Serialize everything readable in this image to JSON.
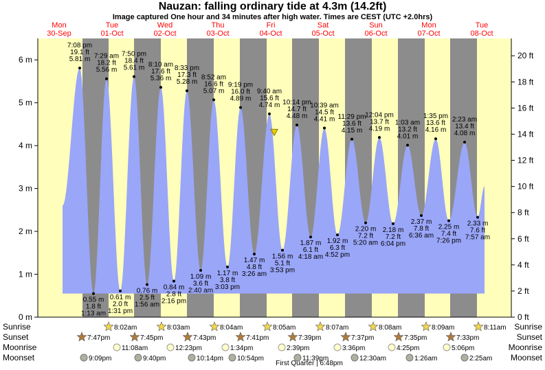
{
  "title": "Nauzan: falling  ordinary tide at 4.3m (14.2ft)",
  "subtitle": "Image captured One hour and 34 minutes after high water. Times are CEST (UTC +2.0hrs)",
  "moon_phase_note": "First Quarter | 6:48pm",
  "row_labels": [
    "Sunrise",
    "Sunset",
    "Moonrise",
    "Moonset"
  ],
  "colors": {
    "water": "#9aa6f8",
    "day": "#ffffbb",
    "night": "#8c8c8c",
    "dayname": "#ff0000",
    "sun": "#f2d64b",
    "sunset": "#b07a3a",
    "moon": "#ffffcc",
    "moonset": "#b0b0a0"
  },
  "days": [
    {
      "name": "Mon",
      "date": "30-Sep"
    },
    {
      "name": "Tue",
      "date": "01-Oct"
    },
    {
      "name": "Wed",
      "date": "02-Oct"
    },
    {
      "name": "Thu",
      "date": "03-Oct"
    },
    {
      "name": "Fri",
      "date": "04-Oct"
    },
    {
      "name": "Sat",
      "date": "05-Oct"
    },
    {
      "name": "Sun",
      "date": "06-Oct"
    },
    {
      "name": "Mon",
      "date": "07-Oct"
    },
    {
      "name": "Tue",
      "date": "08-Oct"
    }
  ],
  "chart_data": {
    "type": "area",
    "title": "Nauzan: falling  ordinary tide at 4.3m (14.2ft)",
    "ylim_m": [
      0,
      6.5
    ],
    "y_ticks_m": [
      "0 m",
      "1 m",
      "2 m",
      "3 m",
      "4 m",
      "5 m",
      "6 m"
    ],
    "y_ticks_ft": [
      "0 ft",
      "2 ft",
      "4 ft",
      "6 ft",
      "8 ft",
      "10 ft",
      "12 ft",
      "14 ft",
      "16 ft",
      "18 ft",
      "20 ft"
    ],
    "current_level_m": 4.3,
    "extremes": [
      {
        "type": "high",
        "time": "7:08 pm",
        "ft": "19.1 ft",
        "m": "5.81 m",
        "value": 5.81
      },
      {
        "type": "low",
        "time": "1:13 am",
        "ft": "1.8 ft",
        "m": "0.55 m",
        "value": 0.55
      },
      {
        "type": "high",
        "time": "7:29 am",
        "ft": "18.2 ft",
        "m": "5.56 m",
        "value": 5.56
      },
      {
        "type": "low",
        "time": "1:31 pm",
        "ft": "2.0 ft",
        "m": "0.61 m",
        "value": 0.61
      },
      {
        "type": "high",
        "time": "7:50 pm",
        "ft": "18.4 ft",
        "m": "5.61 m",
        "value": 5.61
      },
      {
        "type": "low",
        "time": "1:56 am",
        "ft": "2.5 ft",
        "m": "0.76 m",
        "value": 0.76
      },
      {
        "type": "high",
        "time": "8:10 am",
        "ft": "17.6 ft",
        "m": "5.36 m",
        "value": 5.36
      },
      {
        "type": "low",
        "time": "2:16 pm",
        "ft": "2.8 ft",
        "m": "0.84 m",
        "value": 0.84
      },
      {
        "type": "high",
        "time": "8:33 pm",
        "ft": "17.3 ft",
        "m": "5.28 m",
        "value": 5.28
      },
      {
        "type": "low",
        "time": "2:40 am",
        "ft": "3.6 ft",
        "m": "1.09 m",
        "value": 1.09
      },
      {
        "type": "high",
        "time": "8:52 am",
        "ft": "16.6 ft",
        "m": "5.07 m",
        "value": 5.07
      },
      {
        "type": "low",
        "time": "3:03 pm",
        "ft": "3.8 ft",
        "m": "1.17 m",
        "value": 1.17
      },
      {
        "type": "high",
        "time": "9:19 pm",
        "ft": "16.0 ft",
        "m": "4.89 m",
        "value": 4.89
      },
      {
        "type": "low",
        "time": "3:26 am",
        "ft": "4.8 ft",
        "m": "1.47 m",
        "value": 1.47
      },
      {
        "type": "high",
        "time": "9:40 am",
        "ft": "15.6 ft",
        "m": "4.74 m",
        "value": 4.74
      },
      {
        "type": "low",
        "time": "3:53 pm",
        "ft": "5.1 ft",
        "m": "1.56 m",
        "value": 1.56
      },
      {
        "type": "high",
        "time": "10:14 pm",
        "ft": "14.7 ft",
        "m": "4.48 m",
        "value": 4.48
      },
      {
        "type": "low",
        "time": "4:18 am",
        "ft": "6.1 ft",
        "m": "1.87 m",
        "value": 1.87
      },
      {
        "type": "high",
        "time": "10:39 am",
        "ft": "14.5 ft",
        "m": "4.41 m",
        "value": 4.41
      },
      {
        "type": "low",
        "time": "4:52 pm",
        "ft": "6.3 ft",
        "m": "1.92 m",
        "value": 1.92
      },
      {
        "type": "high",
        "time": "11:29 pm",
        "ft": "13.6 ft",
        "m": "4.15 m",
        "value": 4.15
      },
      {
        "type": "low",
        "time": "5:20 am",
        "ft": "7.2 ft",
        "m": "2.20 m",
        "value": 2.2
      },
      {
        "type": "high",
        "time": "12:04 pm",
        "ft": "13.7 ft",
        "m": "4.19 m",
        "value": 4.19
      },
      {
        "type": "low",
        "time": "6:04 pm",
        "ft": "7.2 ft",
        "m": "2.18 m",
        "value": 2.18
      },
      {
        "type": "high",
        "time": "1:03 am",
        "ft": "13.2 ft",
        "m": "4.01 m",
        "value": 4.01
      },
      {
        "type": "low",
        "time": "6:36 am",
        "ft": "7.8 ft",
        "m": "2.37 m",
        "value": 2.37
      },
      {
        "type": "high",
        "time": "1:35 pm",
        "ft": "13.6 ft",
        "m": "4.16 m",
        "value": 4.16
      },
      {
        "type": "low",
        "time": "7:26 pm",
        "ft": "7.4 ft",
        "m": "2.25 m",
        "value": 2.25
      },
      {
        "type": "high",
        "time": "2:23 am",
        "ft": "13.4 ft",
        "m": "4.08 m",
        "value": 4.08
      },
      {
        "type": "low",
        "time": "7:57 am",
        "ft": "7.6 ft",
        "m": "2.33 m",
        "value": 2.33
      }
    ],
    "sunrise": [
      "8:02am",
      "8:03am",
      "8:04am",
      "8:05am",
      "8:07am",
      "8:08am",
      "8:09am",
      "8:11am"
    ],
    "sunset": [
      "7:47pm",
      "7:45pm",
      "7:43pm",
      "7:41pm",
      "7:39pm",
      "7:37pm",
      "7:35pm",
      "7:33pm"
    ],
    "moonrise": [
      "11:08am",
      "12:23pm",
      "1:34pm",
      "2:39pm",
      "3:36pm",
      "4:25pm",
      "5:06pm"
    ],
    "moonset": [
      "9:09pm",
      "9:40pm",
      "10:14pm",
      "10:54pm",
      "11:39pm",
      "12:30am",
      "1:26am",
      "2:25am"
    ]
  }
}
